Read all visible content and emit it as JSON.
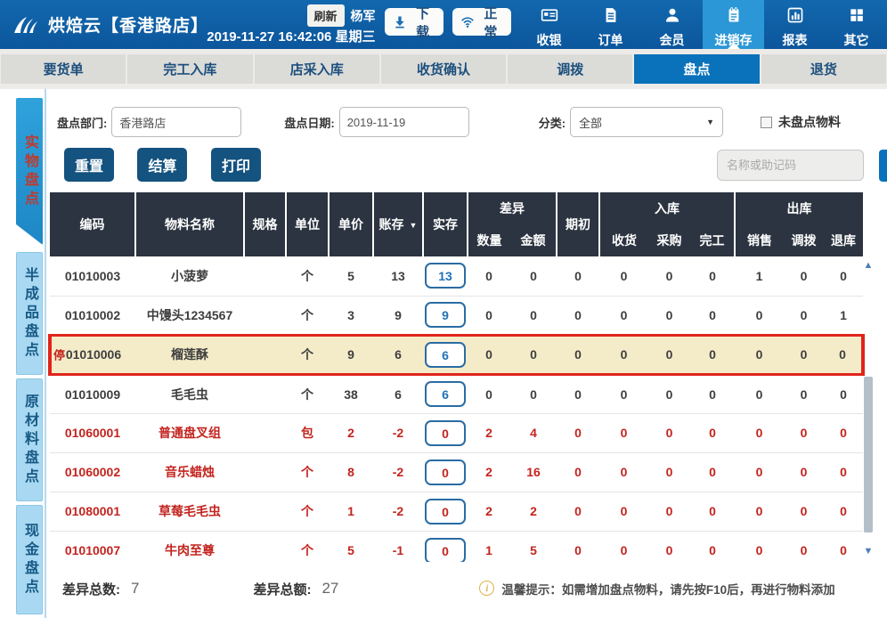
{
  "colors": {
    "accent": "#0a72ba",
    "topbar": "#0e5fa4",
    "alert_red": "#c3241f",
    "highlight_bg": "#f4ecc9",
    "header_dark": "#2b3440"
  },
  "topbar": {
    "brand": "烘焙云【香港路店】",
    "datetime": "2019-11-27 16:42:06 星期三",
    "refresh_label": "刷新",
    "user": "杨军",
    "download_label": "下载",
    "network_status": "正常",
    "nav": [
      {
        "id": "cashier",
        "label": "收银",
        "icon": "cashier-card-icon",
        "active": false
      },
      {
        "id": "orders",
        "label": "订单",
        "icon": "order-document-icon",
        "active": false
      },
      {
        "id": "members",
        "label": "会员",
        "icon": "member-person-icon",
        "active": false
      },
      {
        "id": "inventory",
        "label": "进销存",
        "icon": "inventory-clipboard-icon",
        "active": true
      },
      {
        "id": "reports",
        "label": "报表",
        "icon": "report-barchart-icon",
        "active": false
      },
      {
        "id": "other",
        "label": "其它",
        "icon": "other-grid-icon",
        "active": false
      }
    ]
  },
  "tabs": [
    {
      "id": "demand-order",
      "label": "要货单",
      "active": false
    },
    {
      "id": "finish-inbound",
      "label": "完工入库",
      "active": false
    },
    {
      "id": "store-purchase",
      "label": "店采入库",
      "active": false
    },
    {
      "id": "receive-confirm",
      "label": "收货确认",
      "active": false
    },
    {
      "id": "transfer",
      "label": "调拨",
      "active": false
    },
    {
      "id": "stocktake",
      "label": "盘点",
      "active": true
    },
    {
      "id": "returns",
      "label": "退货",
      "active": false
    }
  ],
  "sidebar": [
    {
      "id": "physical-stocktake",
      "label": "实物盘点",
      "active": true
    },
    {
      "id": "semifinished-stocktake",
      "label": "半成品盘点",
      "active": false
    },
    {
      "id": "rawmaterial-stocktake",
      "label": "原材料盘点",
      "active": false
    },
    {
      "id": "cash-stocktake",
      "label": "现金盘点",
      "active": false
    }
  ],
  "filters": {
    "dept_label": "盘点部门:",
    "dept_value": "香港路店",
    "date_label": "盘点日期:",
    "date_value": "2019-11-19",
    "category_label": "分类:",
    "category_value": "全部",
    "uncounted_label": "未盘点物料",
    "uncounted_checked": false,
    "search_placeholder": "名称或助记码"
  },
  "actions": {
    "reset": "重置",
    "settle": "结算",
    "print": "打印"
  },
  "table": {
    "columns": {
      "code": "编码",
      "name": "物料名称",
      "spec": "规格",
      "unit": "单位",
      "price": "单价",
      "book": "账存",
      "actual": "实存",
      "initial": "期初",
      "diff_group": "差异",
      "diff_qty": "数量",
      "diff_amt": "金额",
      "in_group": "入库",
      "in_receive": "收货",
      "in_purchase": "采购",
      "in_finish": "完工",
      "out_group": "出库",
      "out_sale": "销售",
      "out_transfer": "调拨",
      "out_return": "退库"
    },
    "rows": [
      {
        "style": "normal",
        "flag": "",
        "code": "01010003",
        "name": "小菠萝",
        "spec": "",
        "unit": "个",
        "price": "5",
        "book": "13",
        "actual": "13",
        "diff_qty": "0",
        "diff_amt": "0",
        "initial": "0",
        "in_receive": "0",
        "in_purchase": "0",
        "in_finish": "0",
        "out_sale": "1",
        "out_transfer": "0",
        "out_return": "0"
      },
      {
        "style": "normal",
        "flag": "",
        "code": "01010002",
        "name": "中馒头1234567",
        "spec": "",
        "unit": "个",
        "price": "3",
        "book": "9",
        "actual": "9",
        "diff_qty": "0",
        "diff_amt": "0",
        "initial": "0",
        "in_receive": "0",
        "in_purchase": "0",
        "in_finish": "0",
        "out_sale": "0",
        "out_transfer": "0",
        "out_return": "1"
      },
      {
        "style": "highlight",
        "flag": "停",
        "code": "01010006",
        "name": "榴莲酥",
        "spec": "",
        "unit": "个",
        "price": "9",
        "book": "6",
        "actual": "6",
        "diff_qty": "0",
        "diff_amt": "0",
        "initial": "0",
        "in_receive": "0",
        "in_purchase": "0",
        "in_finish": "0",
        "out_sale": "0",
        "out_transfer": "0",
        "out_return": "0"
      },
      {
        "style": "normal",
        "flag": "",
        "code": "01010009",
        "name": "毛毛虫",
        "spec": "",
        "unit": "个",
        "price": "38",
        "book": "6",
        "actual": "6",
        "diff_qty": "0",
        "diff_amt": "0",
        "initial": "0",
        "in_receive": "0",
        "in_purchase": "0",
        "in_finish": "0",
        "out_sale": "0",
        "out_transfer": "0",
        "out_return": "0"
      },
      {
        "style": "red",
        "flag": "",
        "code": "01060001",
        "name": "普通盘叉组",
        "spec": "",
        "unit": "包",
        "price": "2",
        "book": "-2",
        "actual": "0",
        "diff_qty": "2",
        "diff_amt": "4",
        "initial": "0",
        "in_receive": "0",
        "in_purchase": "0",
        "in_finish": "0",
        "out_sale": "0",
        "out_transfer": "0",
        "out_return": "0"
      },
      {
        "style": "red",
        "flag": "",
        "code": "01060002",
        "name": "音乐蜡烛",
        "spec": "",
        "unit": "个",
        "price": "8",
        "book": "-2",
        "actual": "0",
        "diff_qty": "2",
        "diff_amt": "16",
        "initial": "0",
        "in_receive": "0",
        "in_purchase": "0",
        "in_finish": "0",
        "out_sale": "0",
        "out_transfer": "0",
        "out_return": "0"
      },
      {
        "style": "red",
        "flag": "",
        "code": "01080001",
        "name": "草莓毛毛虫",
        "spec": "",
        "unit": "个",
        "price": "1",
        "book": "-2",
        "actual": "0",
        "diff_qty": "2",
        "diff_amt": "2",
        "initial": "0",
        "in_receive": "0",
        "in_purchase": "0",
        "in_finish": "0",
        "out_sale": "0",
        "out_transfer": "0",
        "out_return": "0"
      },
      {
        "style": "red",
        "flag": "",
        "code": "01010007",
        "name": "牛肉至尊",
        "spec": "",
        "unit": "个",
        "price": "5",
        "book": "-1",
        "actual": "0",
        "diff_qty": "1",
        "diff_amt": "5",
        "initial": "0",
        "in_receive": "0",
        "in_purchase": "0",
        "in_finish": "0",
        "out_sale": "0",
        "out_transfer": "0",
        "out_return": "0"
      }
    ]
  },
  "footer": {
    "diff_count_label": "差异总数:",
    "diff_count": "7",
    "diff_amount_label": "差异总额:",
    "diff_amount": "27",
    "tip": "温馨提示：如需增加盘点物料，请先按F10后，再进行物料添加"
  }
}
